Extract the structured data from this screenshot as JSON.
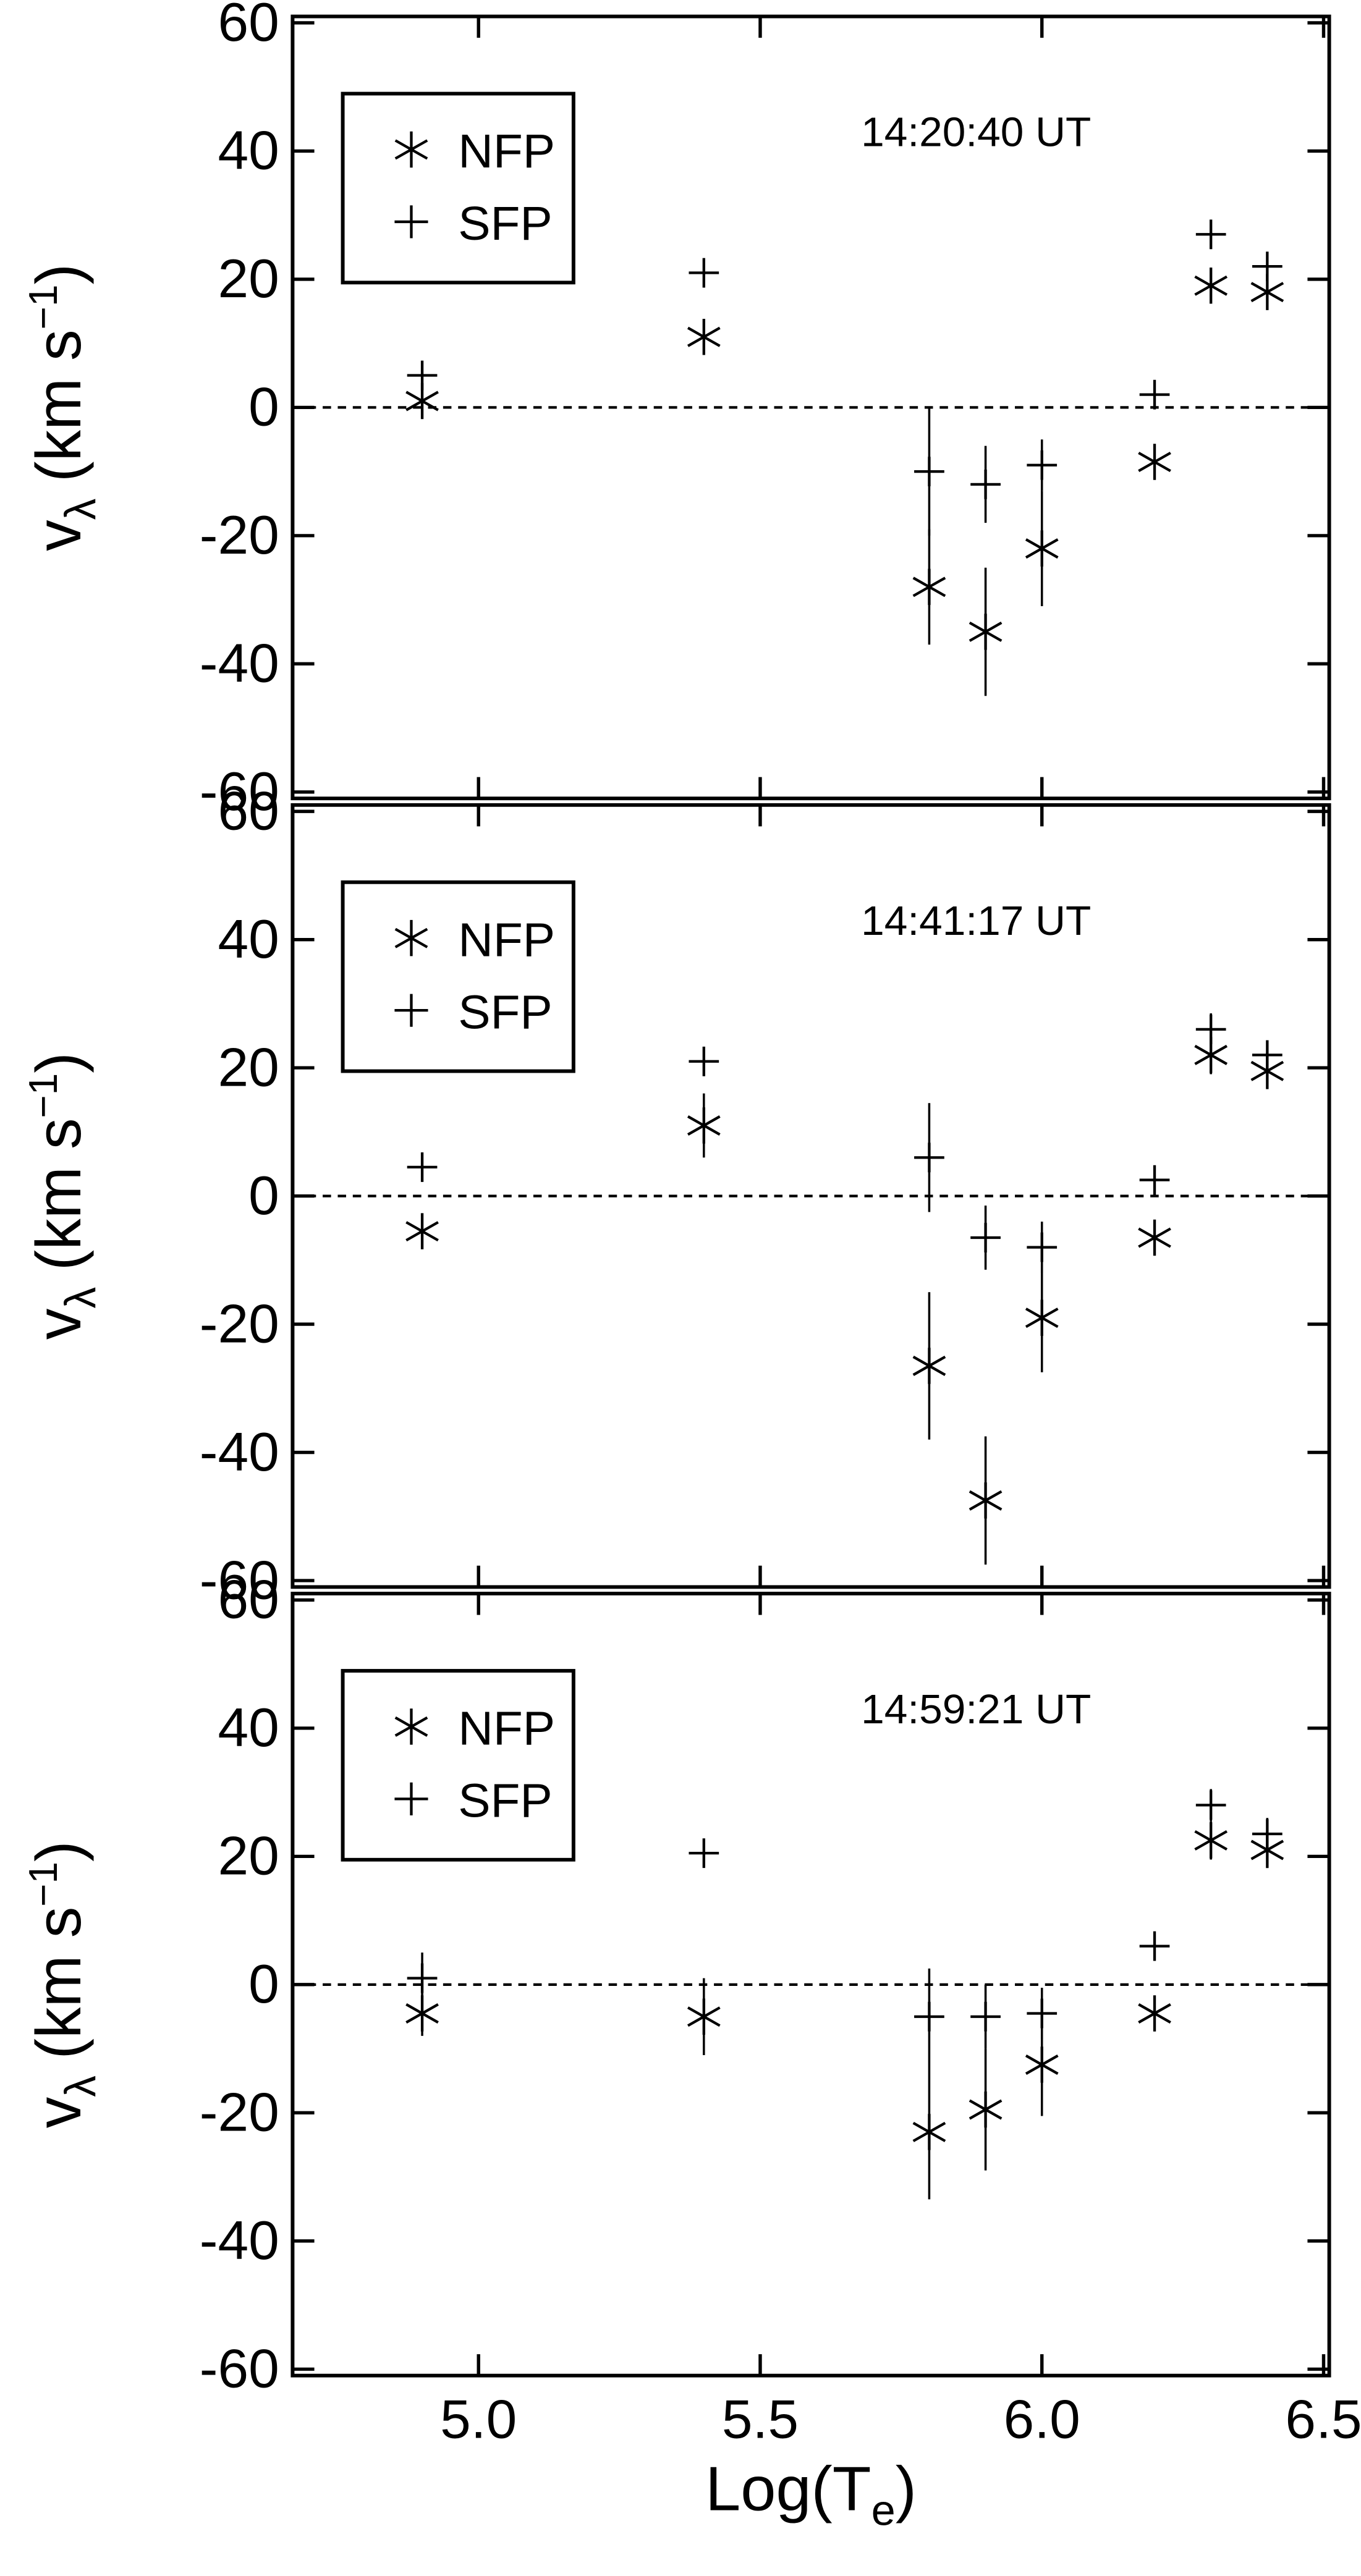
{
  "chart_data": [
    {
      "type": "scatter",
      "annotation": "14:20:40 UT",
      "y_label": {
        "symbol": "v",
        "sub": "λ",
        "unit": "(km s",
        "sup": "−1",
        "close": ")"
      },
      "x": [
        4.9,
        5.4,
        5.8,
        5.9,
        6.0,
        6.2,
        6.3,
        6.4
      ],
      "xlim": [
        4.67,
        6.51
      ],
      "xticks": [
        {
          "value": 5,
          "label": "5.0"
        },
        {
          "value": 5.5,
          "label": "5.5"
        },
        {
          "value": 6,
          "label": "6.0"
        },
        {
          "value": 6.5,
          "label": "6.5"
        }
      ],
      "ylim": [
        -61,
        61
      ],
      "yticks": [
        -60,
        -40,
        -20,
        0,
        20,
        40,
        60
      ],
      "zero_line": true,
      "series": [
        {
          "name": "NFP",
          "marker": "asterisk",
          "color": "#000000",
          "values": [
            1,
            11,
            -28,
            -35,
            -22,
            -8.5,
            19,
            18
          ],
          "errors": [
            2,
            2,
            9,
            10,
            9,
            1.5,
            2,
            2
          ]
        },
        {
          "name": "SFP",
          "marker": "plus",
          "color": "#000000",
          "values": [
            5,
            21,
            -10,
            -12,
            -9,
            2,
            27,
            22
          ],
          "errors": [
            2,
            2,
            10,
            6,
            4,
            1.5,
            2,
            2
          ]
        }
      ]
    },
    {
      "type": "scatter",
      "annotation": "14:41:17 UT",
      "y_label": {
        "symbol": "v",
        "sub": "λ",
        "unit": "(km s",
        "sup": "−1",
        "close": ")"
      },
      "x": [
        4.9,
        5.4,
        5.8,
        5.9,
        6.0,
        6.2,
        6.3,
        6.4
      ],
      "xlim": [
        4.67,
        6.51
      ],
      "xticks": [
        {
          "value": 5,
          "label": "5.0"
        },
        {
          "value": 5.5,
          "label": "5.5"
        },
        {
          "value": 6,
          "label": "6.0"
        },
        {
          "value": 6.5,
          "label": "6.5"
        }
      ],
      "ylim": [
        -61,
        61
      ],
      "yticks": [
        -60,
        -40,
        -20,
        0,
        20,
        40,
        60
      ],
      "zero_line": true,
      "series": [
        {
          "name": "NFP",
          "marker": "asterisk",
          "color": "#000000",
          "values": [
            -5.5,
            11,
            -26.5,
            -47.5,
            -19,
            -6.5,
            22,
            19.5
          ],
          "errors": [
            1.5,
            5,
            11.5,
            10,
            8.5,
            1.5,
            3,
            2
          ]
        },
        {
          "name": "SFP",
          "marker": "plus",
          "color": "#000000",
          "values": [
            4.5,
            21,
            6,
            -6.5,
            -8,
            2.5,
            26,
            22
          ],
          "errors": [
            1.5,
            2,
            8.5,
            5,
            4,
            1.5,
            2.5,
            2
          ]
        }
      ]
    },
    {
      "type": "scatter",
      "annotation": "14:59:21 UT",
      "y_label": {
        "symbol": "v",
        "sub": "λ",
        "unit": "(km s",
        "sup": "−1",
        "close": ")"
      },
      "x_label": {
        "main": "Log(T",
        "sub": "e",
        "close": ")"
      },
      "x": [
        4.9,
        5.4,
        5.8,
        5.9,
        6.0,
        6.2,
        6.3,
        6.4
      ],
      "xlim": [
        4.67,
        6.51
      ],
      "xticks": [
        {
          "value": 5,
          "label": "5.0"
        },
        {
          "value": 5.5,
          "label": "5.5"
        },
        {
          "value": 6,
          "label": "6.0"
        },
        {
          "value": 6.5,
          "label": "6.5"
        }
      ],
      "ylim": [
        -61,
        61
      ],
      "yticks": [
        -60,
        -40,
        -20,
        0,
        20,
        40,
        60
      ],
      "zero_line": true,
      "series": [
        {
          "name": "NFP",
          "marker": "asterisk",
          "color": "#000000",
          "values": [
            -4.5,
            -5,
            -23,
            -19.5,
            -12.5,
            -4.5,
            22.5,
            21
          ],
          "errors": [
            3.5,
            6,
            10.5,
            9.5,
            8,
            1.5,
            3,
            2
          ]
        },
        {
          "name": "SFP",
          "marker": "plus",
          "color": "#000000",
          "values": [
            1,
            20.5,
            -5,
            -5,
            -4.5,
            6,
            28,
            23.5
          ],
          "errors": [
            4,
            2,
            7.5,
            5,
            4,
            1.5,
            2.5,
            2.5
          ]
        }
      ]
    }
  ]
}
